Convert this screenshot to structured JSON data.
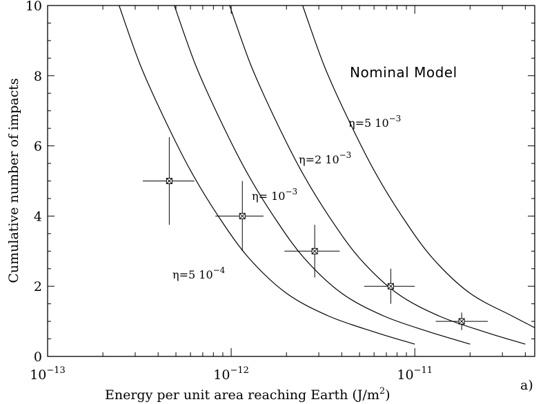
{
  "chart_data": {
    "type": "scatter",
    "panel_label": "a)",
    "xlabel": {
      "pre": "Energy per unit area reaching Earth (J/m",
      "sup": "2",
      "post": ")"
    },
    "ylabel": "Cumulative number of impacts",
    "x_scale": "log",
    "xlim": [
      1e-13,
      4.5e-11
    ],
    "ylim": [
      0,
      10
    ],
    "x_ticks": [
      {
        "value": 1e-13,
        "base": "10",
        "exp": "−13"
      },
      {
        "value": 1e-12,
        "base": "10",
        "exp": "−12"
      },
      {
        "value": 1e-11,
        "base": "10",
        "exp": "−11"
      }
    ],
    "y_ticks": [
      {
        "value": 0,
        "label": "0"
      },
      {
        "value": 2,
        "label": "2"
      },
      {
        "value": 4,
        "label": "4"
      },
      {
        "value": 6,
        "label": "6"
      },
      {
        "value": 8,
        "label": "8"
      },
      {
        "value": 10,
        "label": "10"
      }
    ],
    "annotation": "Nominal Model",
    "points": [
      {
        "x": 4.6e-13,
        "y": 5,
        "xerr": [
          3.3e-13,
          6.3e-13
        ],
        "yerr": [
          3.75,
          6.25
        ]
      },
      {
        "x": 1.15e-12,
        "y": 4,
        "xerr": [
          8.2e-13,
          1.5e-12
        ],
        "yerr": [
          3.0,
          5.0
        ]
      },
      {
        "x": 2.85e-12,
        "y": 3,
        "xerr": [
          1.95e-12,
          3.9e-12
        ],
        "yerr": [
          2.25,
          3.75
        ]
      },
      {
        "x": 7.4e-12,
        "y": 2,
        "xerr": [
          5.3e-12,
          1e-11
        ],
        "yerr": [
          1.5,
          2.5
        ]
      },
      {
        "x": 1.8e-11,
        "y": 1,
        "xerr": [
          1.3e-11,
          2.5e-11
        ],
        "yerr": [
          0.75,
          1.25
        ]
      }
    ],
    "curves": [
      {
        "label_prefix": "η=5  10",
        "label_exp": "−4",
        "x": [
          2.45e-13,
          3.2e-13,
          4.3e-13,
          6e-13,
          8.5e-13,
          1.25e-12,
          2e-12,
          3.4e-12,
          6e-12,
          1e-11
        ],
        "y": [
          10,
          8.3,
          6.8,
          5.3,
          4.0,
          2.8,
          1.8,
          1.15,
          0.7,
          0.35
        ]
      },
      {
        "label_prefix": "η=  10",
        "label_exp": "−3",
        "x": [
          4.9e-13,
          6.4e-13,
          8.6e-13,
          1.2e-12,
          1.7e-12,
          2.5e-12,
          4e-12,
          6.8e-12,
          1.2e-11,
          2e-11
        ],
        "y": [
          10,
          8.3,
          6.8,
          5.3,
          4.0,
          2.8,
          1.8,
          1.15,
          0.7,
          0.35
        ]
      },
      {
        "label_prefix": "η=2  10",
        "label_exp": "−3",
        "x": [
          9.8e-13,
          1.28e-12,
          1.72e-12,
          2.4e-12,
          3.4e-12,
          5e-12,
          8e-12,
          1.36e-11,
          2.4e-11,
          4e-11
        ],
        "y": [
          10,
          8.3,
          6.8,
          5.3,
          4.0,
          2.8,
          1.8,
          1.15,
          0.7,
          0.35
        ]
      },
      {
        "label_prefix": "η=5  10",
        "label_exp": "−3",
        "x": [
          2.45e-12,
          3.2e-12,
          4.3e-12,
          6e-12,
          8.5e-12,
          1.25e-11,
          2e-11,
          3.4e-11,
          4.5e-11
        ],
        "y": [
          10,
          8.3,
          6.8,
          5.3,
          4.0,
          2.8,
          1.8,
          1.15,
          0.82
        ]
      }
    ]
  }
}
